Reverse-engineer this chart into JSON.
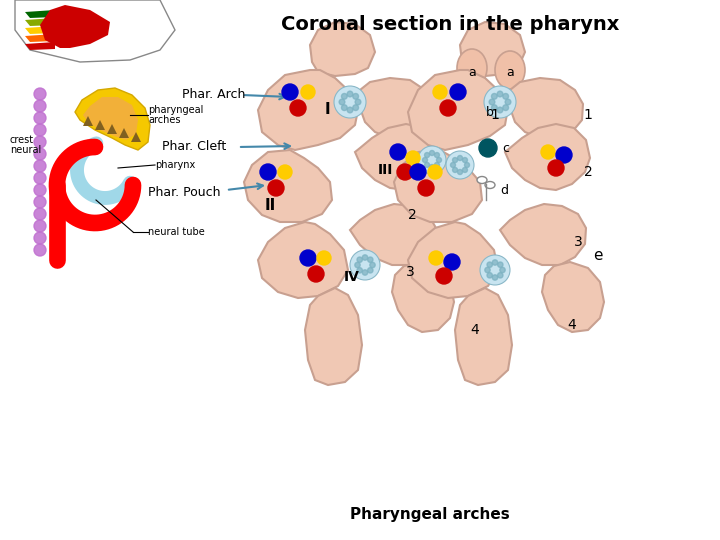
{
  "title": "Coronal section in the pharynx",
  "bottom_label": "Pharyngeal arches",
  "bg_color": "#ffffff",
  "skin_color": "#f0c8b4",
  "skin_edge": "#c8a090",
  "text_color": "#000000",
  "blue_dot": "#0000cc",
  "red_dot": "#cc0000",
  "yellow_dot": "#ffcc00",
  "teal_dot": "#006666",
  "spotted_color": "#b0d8e8",
  "left_arch_labels": [
    "I",
    "II",
    "III",
    "IV"
  ],
  "right_arch_labels": [
    "1",
    "2",
    "3",
    "4"
  ],
  "center_labels": [
    "a",
    "a",
    "b",
    "c",
    "d"
  ],
  "right_label": "e"
}
